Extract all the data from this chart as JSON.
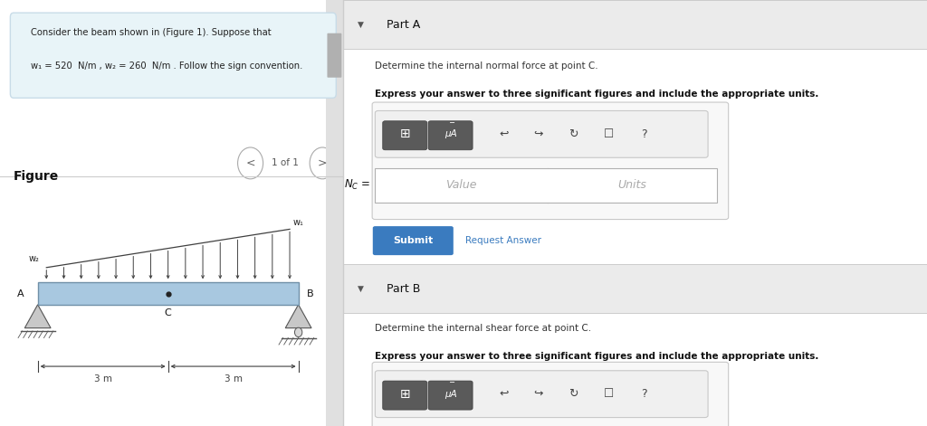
{
  "bg_color": "#ffffff",
  "left_panel_bg": "#ffffff",
  "right_panel_bg": "#f5f5f5",
  "problem_box_bg": "#e8f4f8",
  "problem_box_border": "#c8dce8",
  "problem_text_line1": "Consider the beam shown in (Figure 1). Suppose that",
  "problem_text_line2": "w₁ = 520  N/m , w₂ = 260  N/m . Follow the sign convention.",
  "figure_label": "Figure",
  "nav_text": "1 of 1",
  "beam_color": "#a8c8e0",
  "beam_border": "#7090a8",
  "load_arrow_color": "#404040",
  "dim_color": "#404040",
  "left_label": "A",
  "right_label": "B",
  "mid_label": "C",
  "w1_label": "w₁",
  "w2_label": "w₂",
  "dim1": "3 m",
  "dim2": "3 m",
  "part_a_header": "Part A",
  "part_a_text1": "Determine the internal normal force at point C.",
  "part_a_text2": "Express your answer to three significant figures and include the appropriate units.",
  "part_b_header": "Part B",
  "part_b_text1": "Determine the internal shear force at point C.",
  "part_b_text2": "Express your answer to three significant figures and include the appropriate units.",
  "submit_text": "Submit",
  "request_text": "Request Answer",
  "submit_color": "#3a7bbf",
  "divider_color": "#cccccc",
  "section_header_bg": "#ebebeb",
  "input_bg": "#ffffff",
  "input_border": "#b0b0b0",
  "value_placeholder": "Value",
  "units_placeholder": "Units"
}
